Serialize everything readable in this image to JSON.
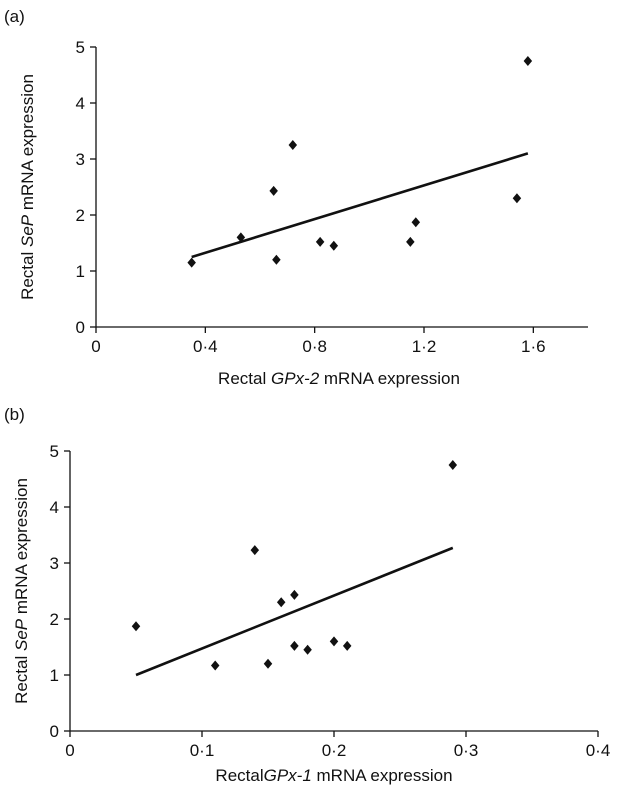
{
  "chart_data": [
    {
      "type": "scatter",
      "panel_label": "(a)",
      "xlabel_prefix": "Rectal ",
      "xlabel_italic": "GPx-2",
      "xlabel_suffix": " mRNA expression",
      "ylabel_prefix": "Rectal ",
      "ylabel_italic": "SeP",
      "ylabel_suffix": " mRNA expression",
      "xlim": [
        0,
        1.8
      ],
      "ylim": [
        0,
        5
      ],
      "x_ticks": [
        0,
        0.4,
        0.8,
        1.2,
        1.6
      ],
      "x_tick_labels": [
        "0",
        "0·4",
        "0·8",
        "1·2",
        "1·6"
      ],
      "y_ticks": [
        0,
        1,
        2,
        3,
        4,
        5
      ],
      "y_tick_labels": [
        "0",
        "1",
        "2",
        "3",
        "4",
        "5"
      ],
      "points": [
        {
          "x": 0.35,
          "y": 1.15
        },
        {
          "x": 0.53,
          "y": 1.6
        },
        {
          "x": 0.65,
          "y": 2.43
        },
        {
          "x": 0.66,
          "y": 1.2
        },
        {
          "x": 0.72,
          "y": 3.25
        },
        {
          "x": 0.82,
          "y": 1.52
        },
        {
          "x": 0.87,
          "y": 1.45
        },
        {
          "x": 1.15,
          "y": 1.52
        },
        {
          "x": 1.17,
          "y": 1.87
        },
        {
          "x": 1.54,
          "y": 2.3
        },
        {
          "x": 1.58,
          "y": 4.75
        }
      ],
      "fit_line": [
        {
          "x": 0.35,
          "y": 1.25
        },
        {
          "x": 1.58,
          "y": 3.1
        }
      ]
    },
    {
      "type": "scatter",
      "panel_label": "(b)",
      "xlabel_prefix": "Rectal",
      "xlabel_italic": "GPx-1",
      "xlabel_suffix": " mRNA expression",
      "ylabel_prefix": "Rectal ",
      "ylabel_italic": "SeP",
      "ylabel_suffix": " mRNA expression",
      "xlim": [
        0,
        0.4
      ],
      "ylim": [
        0,
        5
      ],
      "x_ticks": [
        0,
        0.1,
        0.2,
        0.3,
        0.4
      ],
      "x_tick_labels": [
        "0",
        "0·1",
        "0·2",
        "0·3",
        "0·4"
      ],
      "y_ticks": [
        0,
        1,
        2,
        3,
        4,
        5
      ],
      "y_tick_labels": [
        "0",
        "1",
        "2",
        "3",
        "4",
        "5"
      ],
      "points": [
        {
          "x": 0.05,
          "y": 1.87
        },
        {
          "x": 0.11,
          "y": 1.17
        },
        {
          "x": 0.14,
          "y": 3.23
        },
        {
          "x": 0.15,
          "y": 1.2
        },
        {
          "x": 0.16,
          "y": 2.3
        },
        {
          "x": 0.17,
          "y": 2.43
        },
        {
          "x": 0.17,
          "y": 1.52
        },
        {
          "x": 0.18,
          "y": 1.45
        },
        {
          "x": 0.2,
          "y": 1.6
        },
        {
          "x": 0.21,
          "y": 1.52
        },
        {
          "x": 0.29,
          "y": 4.75
        }
      ],
      "fit_line": [
        {
          "x": 0.05,
          "y": 1.0
        },
        {
          "x": 0.29,
          "y": 3.27
        }
      ]
    }
  ]
}
